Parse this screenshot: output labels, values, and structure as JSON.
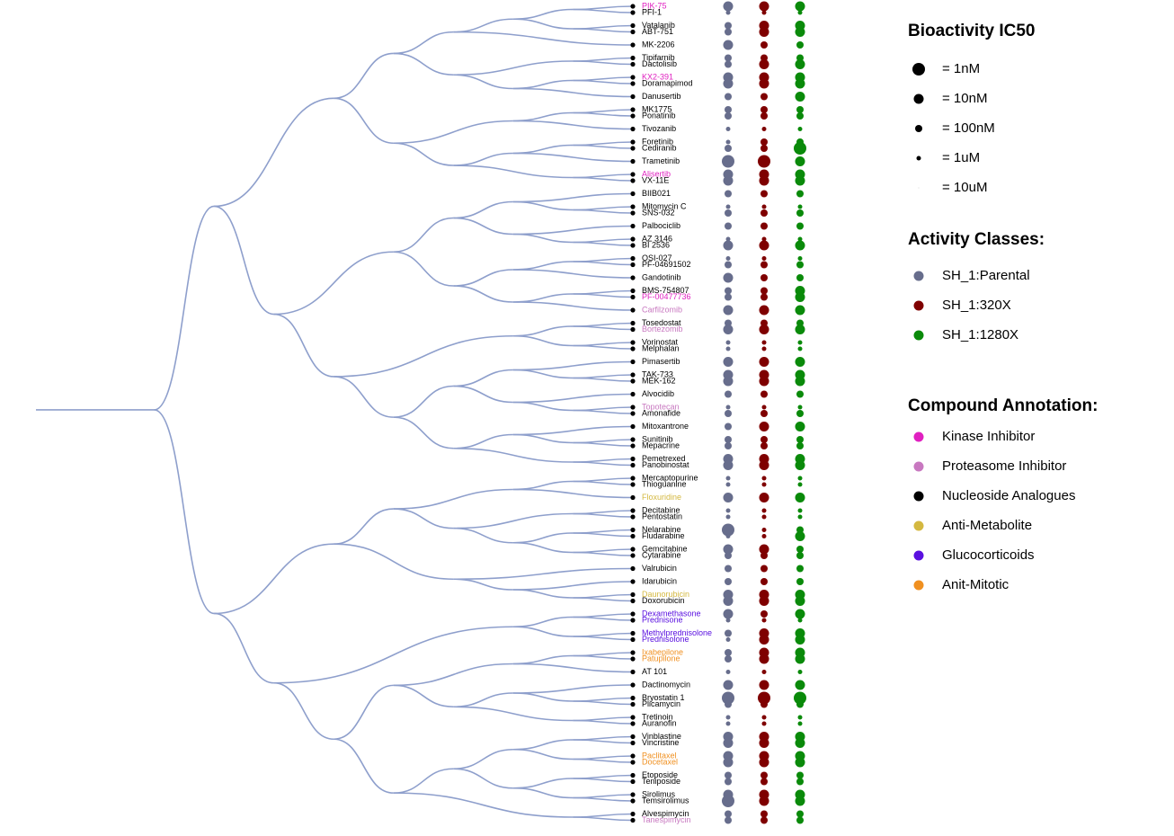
{
  "chart_data": {
    "type": "dendrogram",
    "size_legend_title": "Bioactivity IC50",
    "sizes": [
      {
        "value": 1,
        "label": "= 1nM"
      },
      {
        "value": 10,
        "label": "= 10nM"
      },
      {
        "value": 100,
        "label": "= 100nM"
      },
      {
        "value": 1000,
        "label": "= 1uM"
      },
      {
        "value": 10000,
        "label": "= 10uM"
      }
    ],
    "class_legend_title": "Activity Classes:",
    "annotation_legend_title": "Compound Annotation:",
    "annotations": [
      {
        "name": "Kinase Inhibitor",
        "color": "#e020c0"
      },
      {
        "name": "Proteasome Inhibitor",
        "color": "#c878c0"
      },
      {
        "name": "Nucleoside Analogues",
        "color": "#000000"
      },
      {
        "name": "Anti-Metabolite",
        "color": "#d4b840"
      },
      {
        "name": "Glucocorticoids",
        "color": "#5a10e0"
      },
      {
        "name": "Anit-Mitotic",
        "color": "#f09020"
      }
    ],
    "leaves": [
      {
        "name": "PIK-75",
        "annotation": "Kinase Inhibitor"
      },
      {
        "name": "PFI-1",
        "annotation": "Nucleoside Analogues"
      },
      {
        "name": "Vatalanib",
        "annotation": "Nucleoside Analogues"
      },
      {
        "name": "ABT-751",
        "annotation": "Nucleoside Analogues"
      },
      {
        "name": "MK-2206",
        "annotation": "Nucleoside Analogues"
      },
      {
        "name": "Tipifarnib",
        "annotation": "Nucleoside Analogues"
      },
      {
        "name": "Dactolisib",
        "annotation": "Nucleoside Analogues"
      },
      {
        "name": "KX2-391",
        "annotation": "Kinase Inhibitor"
      },
      {
        "name": "Doramapimod",
        "annotation": "Nucleoside Analogues"
      },
      {
        "name": "Danusertib",
        "annotation": "Nucleoside Analogues"
      },
      {
        "name": "MK1775",
        "annotation": "Nucleoside Analogues"
      },
      {
        "name": "Ponatinib",
        "annotation": "Nucleoside Analogues"
      },
      {
        "name": "Tivozanib",
        "annotation": "Nucleoside Analogues"
      },
      {
        "name": "Foretinib",
        "annotation": "Nucleoside Analogues"
      },
      {
        "name": "Cediranib",
        "annotation": "Nucleoside Analogues"
      },
      {
        "name": "Trametinib",
        "annotation": "Nucleoside Analogues"
      },
      {
        "name": "Alisertib",
        "annotation": "Kinase Inhibitor"
      },
      {
        "name": "VX-11E",
        "annotation": "Nucleoside Analogues"
      },
      {
        "name": "BIIB021",
        "annotation": "Nucleoside Analogues"
      },
      {
        "name": "Mitomycin C",
        "annotation": "Nucleoside Analogues"
      },
      {
        "name": "SNS-032",
        "annotation": "Nucleoside Analogues"
      },
      {
        "name": "Palbociclib",
        "annotation": "Nucleoside Analogues"
      },
      {
        "name": "AZ 3146",
        "annotation": "Nucleoside Analogues"
      },
      {
        "name": "BI 2536",
        "annotation": "Nucleoside Analogues"
      },
      {
        "name": "OSI-027",
        "annotation": "Nucleoside Analogues"
      },
      {
        "name": "PF-04691502",
        "annotation": "Nucleoside Analogues"
      },
      {
        "name": "Gandotinib",
        "annotation": "Nucleoside Analogues"
      },
      {
        "name": "BMS-754807",
        "annotation": "Nucleoside Analogues"
      },
      {
        "name": "PF-00477736",
        "annotation": "Kinase Inhibitor"
      },
      {
        "name": "Carfilzomib",
        "annotation": "Proteasome Inhibitor"
      },
      {
        "name": "Tosedostat",
        "annotation": "Nucleoside Analogues"
      },
      {
        "name": "Bortezomib",
        "annotation": "Proteasome Inhibitor"
      },
      {
        "name": "Vorinostat",
        "annotation": "Nucleoside Analogues"
      },
      {
        "name": "Melphalan",
        "annotation": "Nucleoside Analogues"
      },
      {
        "name": "Pimasertib",
        "annotation": "Nucleoside Analogues"
      },
      {
        "name": "TAK-733",
        "annotation": "Nucleoside Analogues"
      },
      {
        "name": "MEK-162",
        "annotation": "Nucleoside Analogues"
      },
      {
        "name": "Alvocidib",
        "annotation": "Nucleoside Analogues"
      },
      {
        "name": "Topotecan",
        "annotation": "Proteasome Inhibitor"
      },
      {
        "name": "Amonafide",
        "annotation": "Nucleoside Analogues"
      },
      {
        "name": "Mitoxantrone",
        "annotation": "Nucleoside Analogues"
      },
      {
        "name": "Sunitinib",
        "annotation": "Nucleoside Analogues"
      },
      {
        "name": "Mepacrine",
        "annotation": "Nucleoside Analogues"
      },
      {
        "name": "Pemetrexed",
        "annotation": "Nucleoside Analogues"
      },
      {
        "name": "Panobinostat",
        "annotation": "Nucleoside Analogues"
      },
      {
        "name": "Mercaptopurine",
        "annotation": "Nucleoside Analogues"
      },
      {
        "name": "Thioguanine",
        "annotation": "Nucleoside Analogues"
      },
      {
        "name": "Floxuridine",
        "annotation": "Anti-Metabolite"
      },
      {
        "name": "Decitabine",
        "annotation": "Nucleoside Analogues"
      },
      {
        "name": "Pentostatin",
        "annotation": "Nucleoside Analogues"
      },
      {
        "name": "Nelarabine",
        "annotation": "Nucleoside Analogues"
      },
      {
        "name": "Fludarabine",
        "annotation": "Nucleoside Analogues"
      },
      {
        "name": "Gemcitabine",
        "annotation": "Nucleoside Analogues"
      },
      {
        "name": "Cytarabine",
        "annotation": "Nucleoside Analogues"
      },
      {
        "name": "Valrubicin",
        "annotation": "Nucleoside Analogues"
      },
      {
        "name": "Idarubicin",
        "annotation": "Nucleoside Analogues"
      },
      {
        "name": "Daunorubicin",
        "annotation": "Anti-Metabolite"
      },
      {
        "name": "Doxorubicin",
        "annotation": "Nucleoside Analogues"
      },
      {
        "name": "Dexamethasone",
        "annotation": "Glucocorticoids"
      },
      {
        "name": "Prednisone",
        "annotation": "Glucocorticoids"
      },
      {
        "name": "Methylprednisolone",
        "annotation": "Glucocorticoids"
      },
      {
        "name": "Prednisolone",
        "annotation": "Glucocorticoids"
      },
      {
        "name": "Ixabepilone",
        "annotation": "Anit-Mitotic"
      },
      {
        "name": "Patupilone",
        "annotation": "Anit-Mitotic"
      },
      {
        "name": "AT 101",
        "annotation": "Nucleoside Analogues"
      },
      {
        "name": "Dactinomycin",
        "annotation": "Nucleoside Analogues"
      },
      {
        "name": "Bryostatin 1",
        "annotation": "Nucleoside Analogues"
      },
      {
        "name": "Plicamycin",
        "annotation": "Nucleoside Analogues"
      },
      {
        "name": "Tretinoin",
        "annotation": "Nucleoside Analogues"
      },
      {
        "name": "Auranofin",
        "annotation": "Nucleoside Analogues"
      },
      {
        "name": "Vinblastine",
        "annotation": "Nucleoside Analogues"
      },
      {
        "name": "Vincristine",
        "annotation": "Nucleoside Analogues"
      },
      {
        "name": "Paclitaxel",
        "annotation": "Anit-Mitotic"
      },
      {
        "name": "Docetaxel",
        "annotation": "Anit-Mitotic"
      },
      {
        "name": "Etoposide",
        "annotation": "Nucleoside Analogues"
      },
      {
        "name": "Teniposide",
        "annotation": "Nucleoside Analogues"
      },
      {
        "name": "Sirolimus",
        "annotation": "Nucleoside Analogues"
      },
      {
        "name": "Temsirolimus",
        "annotation": "Nucleoside Analogues"
      },
      {
        "name": "Alvespimycin",
        "annotation": "Nucleoside Analogues"
      },
      {
        "name": "Tanespimycin",
        "annotation": "Proteasome Inhibitor"
      }
    ],
    "tree": [
      [
        [
          [
            [
              [
                [
                  [
                    0,
                    1
                  ],
                  [
                    2,
                    3
                  ]
                ],
                4
              ],
              [
                [
                  5,
                  6
                ],
                [
                  [
                    7,
                    8
                  ],
                  9
                ]
              ]
            ],
            [
              [
                [
                  10,
                  11
                ],
                12
              ],
              [
                [
                  [
                    13,
                    14
                  ],
                  15
                ],
                [
                  16,
                  17
                ]
              ]
            ]
          ],
          [
            [
              [
                [
                  18,
                  [
                    19,
                    20
                  ]
                ],
                [
                  21,
                  [
                    22,
                    23
                  ]
                ]
              ],
              [
                [
                  [
                    24,
                    25
                  ],
                  26
                ],
                [
                  [
                    27,
                    28
                  ],
                  29
                ]
              ]
            ],
            [
              [
                [
                  30,
                  31
                ],
                [
                  32,
                  33
                ]
              ],
              [
                [
                  [
                    34,
                    [
                      35,
                      36
                    ]
                  ],
                  [
                    37,
                    [
                      38,
                      39
                    ]
                  ]
                ],
                [
                  [
                    40,
                    [
                      41,
                      42
                    ]
                  ],
                  [
                    43,
                    44
                  ]
                ]
              ]
            ]
          ]
        ],
        [
          [
            [
              [
                [
                  45,
                  46
                ],
                47
              ],
              [
                [
                  48,
                  49
                ],
                [
                  [
                    50,
                    51
                  ],
                  [
                    52,
                    53
                  ]
                ]
              ]
            ],
            [
              54,
              [
                55,
                [
                  56,
                  57
                ]
              ]
            ]
          ],
          [
            [
              [
                58,
                59
              ],
              [
                60,
                61
              ]
            ],
            [
              [
                [
                  [
                    62,
                    63
                  ],
                  64
                ],
                [
                  [
                    65,
                    [
                      66,
                      67
                    ]
                  ],
                  [
                    68,
                    69
                  ]
                ]
              ],
              [
                [
                  [
                    [
                      70,
                      71
                    ],
                    [
                      72,
                      73
                    ]
                  ],
                  [
                    [
                      74,
                      75
                    ],
                    [
                      76,
                      77
                    ]
                  ]
                ],
                [
                  78,
                  79
                ]
              ]
            ]
          ]
        ]
      ]
    ],
    "series": [
      {
        "name": "SH_1:Parental",
        "color": "#676d8c",
        "values": [
          10,
          1000,
          100,
          100,
          10,
          100,
          100,
          10,
          10,
          100,
          100,
          100,
          1000,
          1000,
          100,
          1,
          10,
          10,
          100,
          1000,
          100,
          100,
          1000,
          10,
          1000,
          100,
          10,
          100,
          100,
          10,
          100,
          10,
          1000,
          1000,
          10,
          10,
          10,
          100,
          1000,
          100,
          100,
          100,
          100,
          10,
          10,
          1000,
          1000,
          10,
          1000,
          1000,
          1,
          1000,
          10,
          100,
          100,
          100,
          10,
          10,
          10,
          1000,
          100,
          1000,
          100,
          100,
          1000,
          10,
          1,
          100,
          1000,
          1000,
          10,
          10,
          10,
          10,
          100,
          100,
          10,
          1,
          100,
          100
        ]
      },
      {
        "name": "SH_1:320X",
        "color": "#7f0000",
        "values": [
          10,
          1000,
          10,
          10,
          100,
          100,
          10,
          10,
          10,
          100,
          100,
          100,
          1000,
          100,
          100,
          1,
          10,
          10,
          100,
          1000,
          100,
          100,
          1000,
          10,
          1000,
          100,
          100,
          100,
          100,
          10,
          100,
          10,
          1000,
          1000,
          10,
          10,
          10,
          100,
          1000,
          100,
          10,
          100,
          100,
          10,
          10,
          1000,
          1000,
          10,
          1000,
          1000,
          1000,
          1000,
          10,
          100,
          100,
          100,
          10,
          10,
          100,
          1000,
          10,
          10,
          10,
          10,
          1000,
          10,
          1,
          100,
          1000,
          1000,
          10,
          10,
          10,
          10,
          100,
          100,
          10,
          10,
          100,
          100
        ]
      },
      {
        "name": "SH_1:1280X",
        "color": "#0a8a0a",
        "values": [
          10,
          1000,
          10,
          10,
          100,
          100,
          10,
          10,
          10,
          10,
          100,
          100,
          1000,
          100,
          1,
          10,
          10,
          10,
          100,
          1000,
          100,
          100,
          1000,
          10,
          1000,
          100,
          100,
          10,
          10,
          10,
          100,
          10,
          1000,
          1000,
          10,
          10,
          10,
          100,
          1000,
          100,
          10,
          100,
          100,
          10,
          10,
          1000,
          1000,
          10,
          1000,
          1000,
          100,
          10,
          100,
          100,
          100,
          100,
          10,
          10,
          10,
          1000,
          10,
          10,
          10,
          10,
          1000,
          10,
          1,
          100,
          1000,
          1000,
          10,
          10,
          10,
          10,
          100,
          100,
          10,
          10,
          100,
          100
        ]
      }
    ]
  }
}
